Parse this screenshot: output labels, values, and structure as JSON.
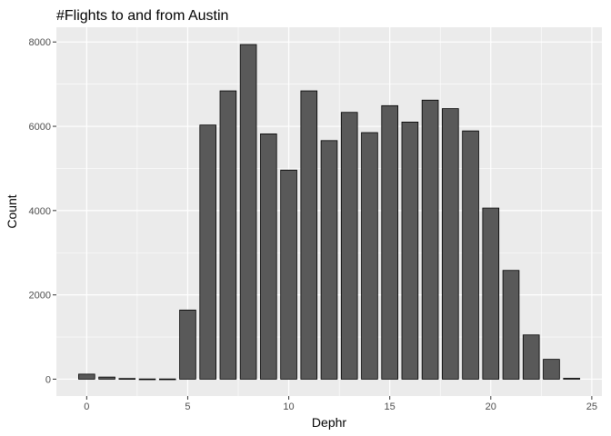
{
  "chart_data": {
    "type": "bar",
    "title": "#Flights to and from Austin",
    "xlabel": "Dephr",
    "ylabel": "Count",
    "xlim": [
      -1.5,
      25.5
    ],
    "ylim": [
      -400,
      8350
    ],
    "x_ticks": [
      0,
      5,
      10,
      15,
      20,
      25
    ],
    "y_ticks": [
      0,
      2000,
      4000,
      6000,
      8000
    ],
    "grid": true,
    "legend": "none",
    "bar_color": "#595959",
    "bar_outline": "#000000",
    "panel_background": "#ebebeb",
    "grid_color": "#ffffff",
    "x": [
      0,
      1,
      2,
      3,
      4,
      5,
      6,
      7,
      8,
      9,
      10,
      11,
      12,
      13,
      14,
      15,
      16,
      17,
      18,
      19,
      20,
      21,
      22,
      23,
      24
    ],
    "values": [
      120,
      50,
      15,
      5,
      5,
      1640,
      6030,
      6840,
      7940,
      5820,
      4960,
      6840,
      5660,
      6330,
      5850,
      6490,
      6100,
      6620,
      6420,
      5890,
      4060,
      2580,
      1050,
      470,
      20
    ]
  }
}
